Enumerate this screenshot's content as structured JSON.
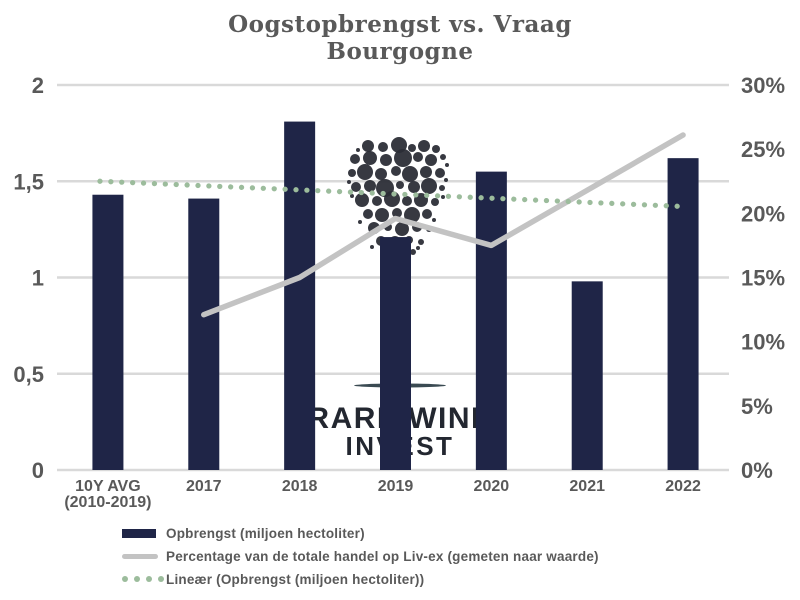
{
  "colors": {
    "background": "#ffffff",
    "gridline": "#d9d9d9",
    "axis_text": "#595959",
    "title_text": "#595959",
    "bar": "#1f2547",
    "line": "#c3c3c3",
    "trend": "#9cbc9c",
    "watermark_grapes": "#2a2d35",
    "watermark_text": "#232730",
    "watermark_swoosh": "#3a4a52"
  },
  "watermark": {
    "line1": "RARE WINE",
    "line2": "INVEST"
  },
  "chart_data": {
    "type": "combo-bar-line",
    "title": "Oogstopbrengst vs. Vraag",
    "subtitle": "Bourgogne",
    "categories": [
      "10Y AVG\n(2010-2019)",
      "2017",
      "2018",
      "2019",
      "2020",
      "2021",
      "2022"
    ],
    "series": [
      {
        "name": "Opbrengst (miljoen hectoliter)",
        "type": "bar",
        "axis": "left",
        "color": "#1f2547",
        "values": [
          1.43,
          1.41,
          1.81,
          1.21,
          1.55,
          0.98,
          1.62
        ]
      },
      {
        "name": "Percentage van de totale handel op Liv-ex (gemeten naar waarde)",
        "type": "line",
        "axis": "right",
        "color": "#c3c3c3",
        "values": [
          null,
          12.1,
          15,
          19.6,
          17.5,
          21.8,
          26.1
        ]
      },
      {
        "name": "Lineær (Opbrengst (miljoen hectoliter))",
        "type": "linear-trend",
        "axis": "left",
        "color": "#9cbc9c",
        "trend_start": 1.5,
        "trend_end": 1.37
      }
    ],
    "left_axis": {
      "min": 0,
      "max": 2,
      "ticks": [
        {
          "label": "0",
          "value": 0
        },
        {
          "label": "0,5",
          "value": 0.5
        },
        {
          "label": "1",
          "value": 1
        },
        {
          "label": "1,5",
          "value": 1.5
        },
        {
          "label": "2",
          "value": 2
        }
      ]
    },
    "right_axis": {
      "min": 0,
      "max": 30,
      "ticks": [
        {
          "label": "0%",
          "value": 0
        },
        {
          "label": "5%",
          "value": 5
        },
        {
          "label": "10%",
          "value": 10
        },
        {
          "label": "15%",
          "value": 15
        },
        {
          "label": "20%",
          "value": 20
        },
        {
          "label": "25%",
          "value": 25
        },
        {
          "label": "30%",
          "value": 30
        }
      ]
    },
    "gridline_values": [
      0,
      0.5,
      1,
      1.5,
      2
    ],
    "grid": true,
    "legend_position": "bottom-left"
  }
}
